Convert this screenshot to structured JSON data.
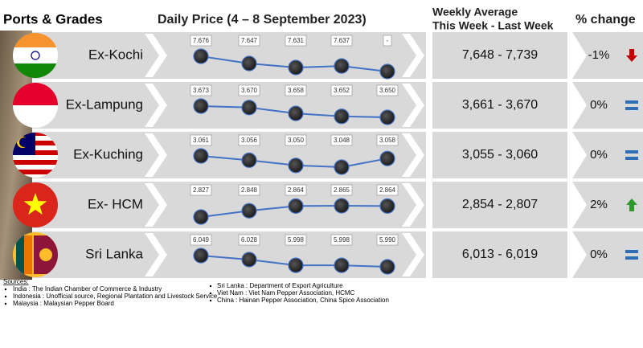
{
  "header": {
    "ports": "Ports & Grades",
    "daily": "Daily Price (4 – 8 September 2023)",
    "weekly_1": "Weekly Average",
    "weekly_2": "This Week - Last Week",
    "change": "% change"
  },
  "rows": [
    {
      "port": "Ex-Kochi",
      "prices": [
        {
          "value": 7676,
          "label": "7.676"
        },
        {
          "value": 7647,
          "label": "7.647"
        },
        {
          "value": 7631,
          "label": "7.631"
        },
        {
          "value": 7637,
          "label": "7.637"
        },
        {
          "value": null,
          "label": "-"
        }
      ],
      "weekly": "7,648 - 7,739",
      "change": "-1%",
      "trend": "down"
    },
    {
      "port": "Ex-Lampung",
      "prices": [
        {
          "value": 3673,
          "label": "3.673"
        },
        {
          "value": 3670,
          "label": "3.670"
        },
        {
          "value": 3658,
          "label": "3.658"
        },
        {
          "value": 3652,
          "label": "3.652"
        },
        {
          "value": 3650,
          "label": "3.650"
        }
      ],
      "weekly": "3,661 - 3,670",
      "change": "0%",
      "trend": "flat"
    },
    {
      "port": "Ex-Kuching",
      "prices": [
        {
          "value": 3061,
          "label": "3.061"
        },
        {
          "value": 3056,
          "label": "3.056"
        },
        {
          "value": 3050,
          "label": "3.050"
        },
        {
          "value": 3048,
          "label": "3.048"
        },
        {
          "value": 3058,
          "label": "3.058"
        }
      ],
      "weekly": "3,055 - 3,060",
      "change": "0%",
      "trend": "flat"
    },
    {
      "port": "Ex- HCM",
      "prices": [
        {
          "value": 2827,
          "label": "2.827"
        },
        {
          "value": 2848,
          "label": "2.848"
        },
        {
          "value": 2864,
          "label": "2.864"
        },
        {
          "value": 2865,
          "label": "2.865"
        },
        {
          "value": 2864,
          "label": "2.864"
        }
      ],
      "weekly": "2,854 - 2,807",
      "change": "2%",
      "trend": "up"
    },
    {
      "port": "Sri Lanka",
      "prices": [
        {
          "value": 6049,
          "label": "6.049"
        },
        {
          "value": 6028,
          "label": "6.028"
        },
        {
          "value": 5998,
          "label": "5.998"
        },
        {
          "value": 5998,
          "label": "5.998"
        },
        {
          "value": 5990,
          "label": "5.990"
        }
      ],
      "weekly": "6,013 - 6,019",
      "change": "0%",
      "trend": "flat"
    }
  ],
  "sources": {
    "title": "Sources:",
    "left": [
      "India : The Indian Chamber of Commerce & Industry",
      "Indonesia : Unofficial source, Regional Plantation and Livestock Service",
      "Malaysia : Malaysian Pepper Board"
    ],
    "right": [
      "Sri Lanka : Department of Export Agriculture",
      "Viet Nam : Viet Nam Pepper Association, HCMC",
      "China : Hainan Pepper Association, China Spice Association"
    ]
  }
}
